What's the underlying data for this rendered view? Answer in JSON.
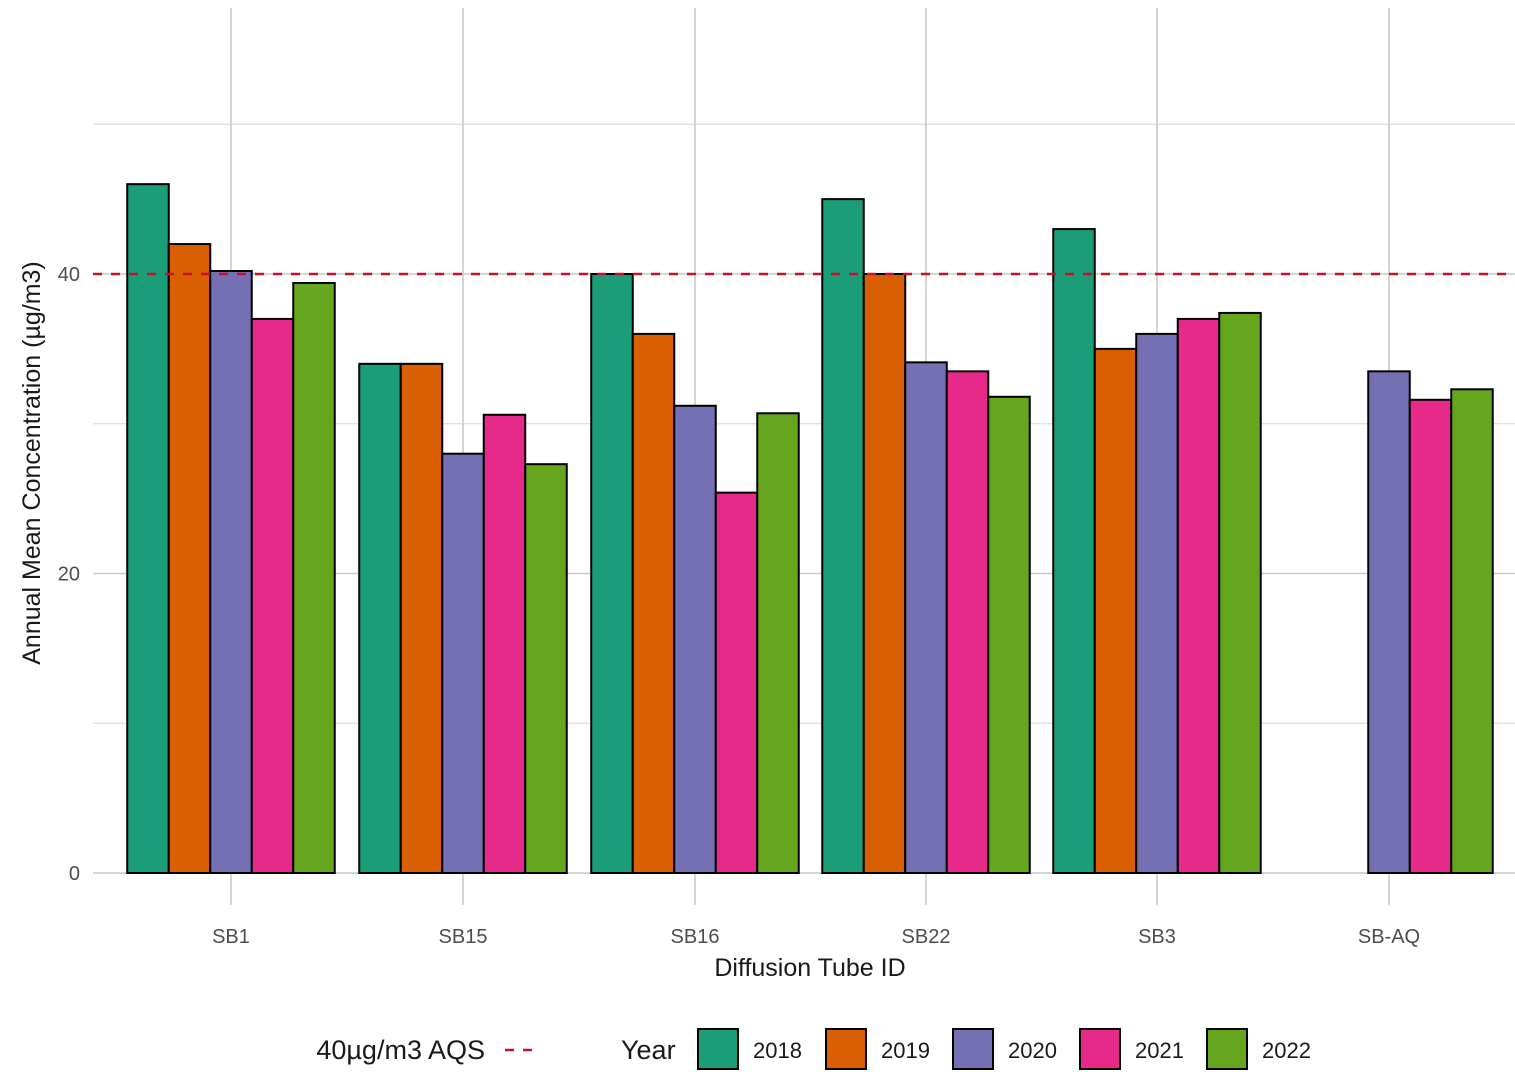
{
  "chart_data": {
    "type": "bar",
    "xlabel": "Diffusion Tube ID",
    "ylabel": "Annual Mean Concentration (µg/m3)",
    "ylim": [
      0,
      50
    ],
    "yticks": [
      0,
      20,
      40
    ],
    "grid": true,
    "legend_placement": "bottom",
    "categories": [
      "SB1",
      "SB15",
      "SB16",
      "SB22",
      "SB3",
      "SB-AQ"
    ],
    "legend_title": "Year",
    "series": [
      {
        "name": "2018",
        "color": "#1B9E77",
        "values": [
          46,
          34,
          40,
          45,
          43,
          null
        ]
      },
      {
        "name": "2019",
        "color": "#D95F02",
        "values": [
          42,
          34,
          36,
          40,
          35,
          null
        ]
      },
      {
        "name": "2020",
        "color": "#7570B3",
        "values": [
          40.2,
          28,
          31.2,
          34.1,
          36,
          33.5
        ]
      },
      {
        "name": "2021",
        "color": "#E7298A",
        "values": [
          37,
          30.6,
          25.4,
          33.5,
          37,
          31.6
        ]
      },
      {
        "name": "2022",
        "color": "#66A61E",
        "values": [
          39.4,
          27.3,
          30.7,
          31.8,
          37.4,
          32.3
        ]
      }
    ],
    "reference_line": {
      "value": 40,
      "label": "40µg/m3 AQS",
      "color": "#C8102E",
      "style": "dashed"
    }
  }
}
